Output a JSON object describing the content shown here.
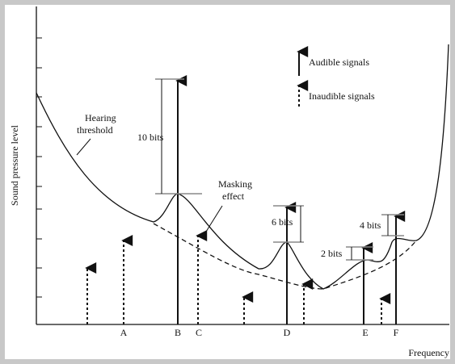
{
  "legend": {
    "audible": "Audible signals",
    "inaudible": "Inaudible signals"
  },
  "annotations": {
    "hearing_threshold": [
      "Hearing",
      "threshold"
    ],
    "masking_effect": [
      "Masking",
      "effect"
    ],
    "bits_10": "10 bits",
    "bits_6": "6 bits",
    "bits_4": "4 bits",
    "bits_2": "2 bits"
  },
  "axes": {
    "y_label": "Sound pressure level",
    "x_label": "Frequency"
  },
  "signals": [
    "A",
    "B",
    "C",
    "D",
    "E",
    "F"
  ]
}
